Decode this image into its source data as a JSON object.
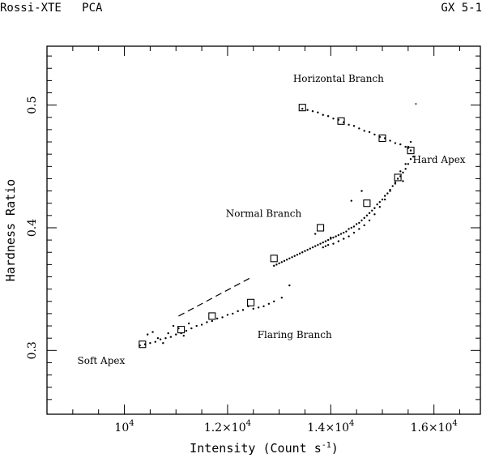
{
  "header": {
    "left": "Rossi-XTE   PCA",
    "right": "GX 5-1"
  },
  "chart_data": {
    "type": "scatter",
    "title": "",
    "xlabel_main": "Intensity (Count s",
    "xlabel_sup": "-1",
    "xlabel_tail": ")",
    "ylabel": "Hardness Ratio",
    "xlim": [
      8500,
      16900
    ],
    "ylim": [
      0.248,
      0.548
    ],
    "x_ticks": [
      {
        "value": 10000,
        "base": "10",
        "exp": "4"
      },
      {
        "value": 12000,
        "base": "1.2×10",
        "exp": "4"
      },
      {
        "value": 14000,
        "base": "1.4×10",
        "exp": "4"
      },
      {
        "value": 16000,
        "base": "1.6×10",
        "exp": "4"
      }
    ],
    "y_ticks": [
      {
        "value": 0.3,
        "label": "0.3"
      },
      {
        "value": 0.4,
        "label": "0.4"
      },
      {
        "value": 0.5,
        "label": "0.5"
      }
    ],
    "annotations": [
      {
        "text": "Horizontal Branch",
        "x": 14150,
        "y": 0.519
      },
      {
        "text": "Hard Apex",
        "x": 16100,
        "y": 0.453
      },
      {
        "text": "Normal Branch",
        "x": 12700,
        "y": 0.409
      },
      {
        "text": "Flaring Branch",
        "x": 13300,
        "y": 0.31
      },
      {
        "text": "Soft Apex",
        "x": 9550,
        "y": 0.289
      }
    ],
    "square_markers": {
      "x": [
        13450,
        14200,
        15000,
        15550,
        15300,
        14700,
        13800,
        12900,
        12450,
        11700,
        11100,
        10350
      ],
      "y": [
        0.498,
        0.487,
        0.473,
        0.463,
        0.441,
        0.42,
        0.4,
        0.375,
        0.339,
        0.328,
        0.317,
        0.305
      ]
    },
    "dashed_line": {
      "x": [
        11050,
        12480
      ],
      "y": [
        0.328,
        0.36
      ]
    },
    "points": {
      "x": [
        13450,
        13550,
        13650,
        13750,
        13850,
        13950,
        14050,
        14150,
        14250,
        14350,
        14450,
        14550,
        14650,
        14750,
        14850,
        14950,
        15050,
        15150,
        15250,
        15350,
        15450,
        15500,
        15550,
        15550,
        15500,
        15450,
        15400,
        15350,
        15300,
        15250,
        15200,
        15150,
        15100,
        15050,
        15000,
        14950,
        14900,
        14850,
        14800,
        14750,
        14700,
        14650,
        14600,
        14550,
        14500,
        14450,
        14400,
        14350,
        14300,
        14250,
        14200,
        14150,
        14100,
        14050,
        14000,
        13950,
        13900,
        13850,
        13800,
        13750,
        13700,
        13650,
        13600,
        13550,
        13500,
        13450,
        13400,
        13350,
        13300,
        13250,
        13200,
        13150,
        13100,
        13050,
        13000,
        12950,
        12900,
        15350,
        15250,
        15150,
        15050,
        14950,
        14850,
        14750,
        14650,
        14550,
        14450,
        14350,
        14250,
        14150,
        14050,
        13950,
        13850,
        13200,
        13050,
        12900,
        12800,
        12700,
        12600,
        12500,
        12400,
        12300,
        12200,
        12100,
        12000,
        11900,
        11800,
        11700,
        11600,
        11500,
        11400,
        11300,
        11200,
        11100,
        11000,
        10900,
        10800,
        10700,
        10600,
        10500,
        10400,
        10300,
        10450,
        10550,
        10650,
        10750,
        10850,
        10950,
        11050,
        11150,
        11250,
        15600,
        15550,
        15500,
        15450,
        15400,
        14600,
        14400,
        14000,
        13900,
        13700
      ],
      "y": [
        0.497,
        0.496,
        0.495,
        0.494,
        0.492,
        0.491,
        0.489,
        0.488,
        0.486,
        0.484,
        0.483,
        0.481,
        0.479,
        0.478,
        0.476,
        0.474,
        0.473,
        0.471,
        0.469,
        0.468,
        0.466,
        0.465,
        0.463,
        0.456,
        0.452,
        0.448,
        0.445,
        0.442,
        0.44,
        0.437,
        0.434,
        0.431,
        0.428,
        0.426,
        0.423,
        0.421,
        0.419,
        0.416,
        0.414,
        0.412,
        0.41,
        0.408,
        0.406,
        0.404,
        0.403,
        0.401,
        0.4,
        0.399,
        0.397,
        0.396,
        0.395,
        0.394,
        0.393,
        0.392,
        0.391,
        0.39,
        0.389,
        0.388,
        0.387,
        0.386,
        0.385,
        0.384,
        0.383,
        0.382,
        0.381,
        0.38,
        0.379,
        0.378,
        0.377,
        0.376,
        0.375,
        0.374,
        0.373,
        0.372,
        0.371,
        0.37,
        0.369,
        0.446,
        0.436,
        0.43,
        0.423,
        0.417,
        0.411,
        0.406,
        0.402,
        0.399,
        0.396,
        0.393,
        0.391,
        0.389,
        0.387,
        0.386,
        0.384,
        0.353,
        0.343,
        0.34,
        0.338,
        0.336,
        0.335,
        0.334,
        0.336,
        0.333,
        0.332,
        0.33,
        0.329,
        0.327,
        0.326,
        0.324,
        0.323,
        0.321,
        0.32,
        0.318,
        0.316,
        0.314,
        0.313,
        0.311,
        0.31,
        0.309,
        0.307,
        0.306,
        0.305,
        0.304,
        0.313,
        0.315,
        0.31,
        0.306,
        0.314,
        0.32,
        0.318,
        0.312,
        0.322,
        0.458,
        0.47,
        0.466,
        0.452,
        0.438,
        0.43,
        0.422,
        0.392,
        0.385,
        0.395
      ]
    },
    "outlier": {
      "x": 15650,
      "y": 0.501
    },
    "grid": false,
    "legend": "none"
  }
}
